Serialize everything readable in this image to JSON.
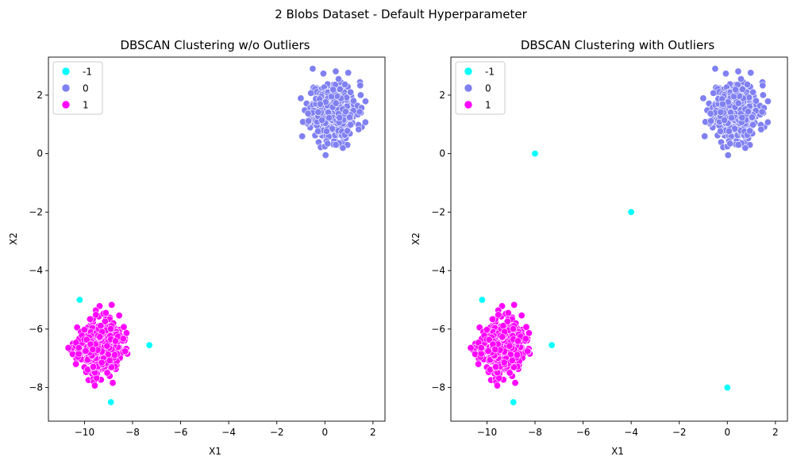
{
  "figure": {
    "suptitle": "2 Blobs Dataset - Default Hyperparameter"
  },
  "colors": {
    "-1": "#00ffff",
    "0": "#8080f2",
    "1": "#ff00ff"
  },
  "chart_data": [
    {
      "type": "scatter",
      "title": "DBSCAN Clustering w/o Outliers",
      "xlabel": "X1",
      "ylabel": "X2",
      "xlim": [
        -11.5,
        2.5
      ],
      "ylim": [
        -9.15,
        3.3
      ],
      "xticks": [
        -10,
        -8,
        -6,
        -4,
        -2,
        0,
        2
      ],
      "yticks": [
        -8,
        -6,
        -4,
        -2,
        0,
        2
      ],
      "grid": false,
      "legend": {
        "position": "top-left",
        "entries": [
          "-1",
          "0",
          "1"
        ]
      },
      "series": [
        {
          "name": "-1",
          "points": [
            [
              -10.2,
              -5.0
            ],
            [
              -7.3,
              -6.55
            ],
            [
              -8.9,
              -8.5
            ]
          ]
        },
        {
          "name": "0",
          "blob": {
            "center": [
              0.35,
              1.45
            ],
            "spread": [
              0.48,
              0.5
            ],
            "count": 500,
            "seed": 11
          }
        },
        {
          "name": "1",
          "blob": {
            "center": [
              -9.35,
              -6.6
            ],
            "spread": [
              0.45,
              0.45
            ],
            "count": 500,
            "seed": 23
          }
        }
      ]
    },
    {
      "type": "scatter",
      "title": "DBSCAN Clustering with Outliers",
      "xlabel": "X1",
      "ylabel": "X2",
      "xlim": [
        -11.5,
        2.5
      ],
      "ylim": [
        -9.15,
        3.3
      ],
      "xticks": [
        -10,
        -8,
        -6,
        -4,
        -2,
        0,
        2
      ],
      "yticks": [
        -8,
        -6,
        -4,
        -2,
        0,
        2
      ],
      "grid": false,
      "legend": {
        "position": "top-left",
        "entries": [
          "-1",
          "0",
          "1"
        ]
      },
      "series": [
        {
          "name": "-1",
          "points": [
            [
              -10.2,
              -5.0
            ],
            [
              -7.3,
              -6.55
            ],
            [
              -8.9,
              -8.5
            ],
            [
              -8.0,
              0.0
            ],
            [
              -4.0,
              -2.0
            ],
            [
              0.0,
              -8.0
            ]
          ]
        },
        {
          "name": "0",
          "blob": {
            "center": [
              0.35,
              1.45
            ],
            "spread": [
              0.48,
              0.5
            ],
            "count": 500,
            "seed": 11
          }
        },
        {
          "name": "1",
          "blob": {
            "center": [
              -9.35,
              -6.6
            ],
            "spread": [
              0.45,
              0.45
            ],
            "count": 500,
            "seed": 23
          }
        }
      ]
    }
  ]
}
